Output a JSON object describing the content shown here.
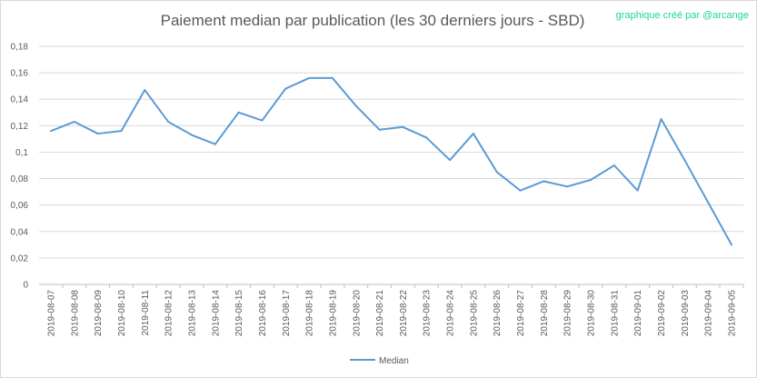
{
  "chart_data": {
    "type": "line",
    "title": "Paiement median par publication (les 30 derniers jours - SBD)",
    "annotation": "graphique créé par @arcange",
    "xlabel": "",
    "ylabel": "",
    "ylim": [
      0,
      0.18
    ],
    "yticks": [
      "0",
      "0,02",
      "0,04",
      "0,06",
      "0,08",
      "0,1",
      "0,12",
      "0,14",
      "0,16",
      "0,18"
    ],
    "grid": true,
    "legend": "bottom",
    "color": "#5b9bd5",
    "categories": [
      "2019-08-07",
      "2019-08-08",
      "2019-08-09",
      "2019-08-10",
      "2019-08-11",
      "2019-08-12",
      "2019-08-13",
      "2019-08-14",
      "2019-08-15",
      "2019-08-16",
      "2019-08-17",
      "2019-08-18",
      "2019-08-19",
      "2019-08-20",
      "2019-08-21",
      "2019-08-22",
      "2019-08-23",
      "2019-08-24",
      "2019-08-25",
      "2019-08-26",
      "2019-08-27",
      "2019-08-28",
      "2019-08-29",
      "2019-08-30",
      "2019-08-31",
      "2019-09-01",
      "2019-09-02",
      "2019-09-03",
      "2019-09-04",
      "2019-09-05"
    ],
    "series": [
      {
        "name": "Median",
        "values": [
          0.116,
          0.123,
          0.114,
          0.116,
          0.147,
          0.123,
          0.113,
          0.106,
          0.13,
          0.124,
          0.148,
          0.156,
          0.156,
          0.135,
          0.117,
          0.119,
          0.111,
          0.094,
          0.114,
          0.085,
          0.071,
          0.078,
          0.074,
          0.079,
          0.09,
          0.071,
          0.125,
          0.094,
          0.062,
          0.03
        ]
      }
    ]
  }
}
